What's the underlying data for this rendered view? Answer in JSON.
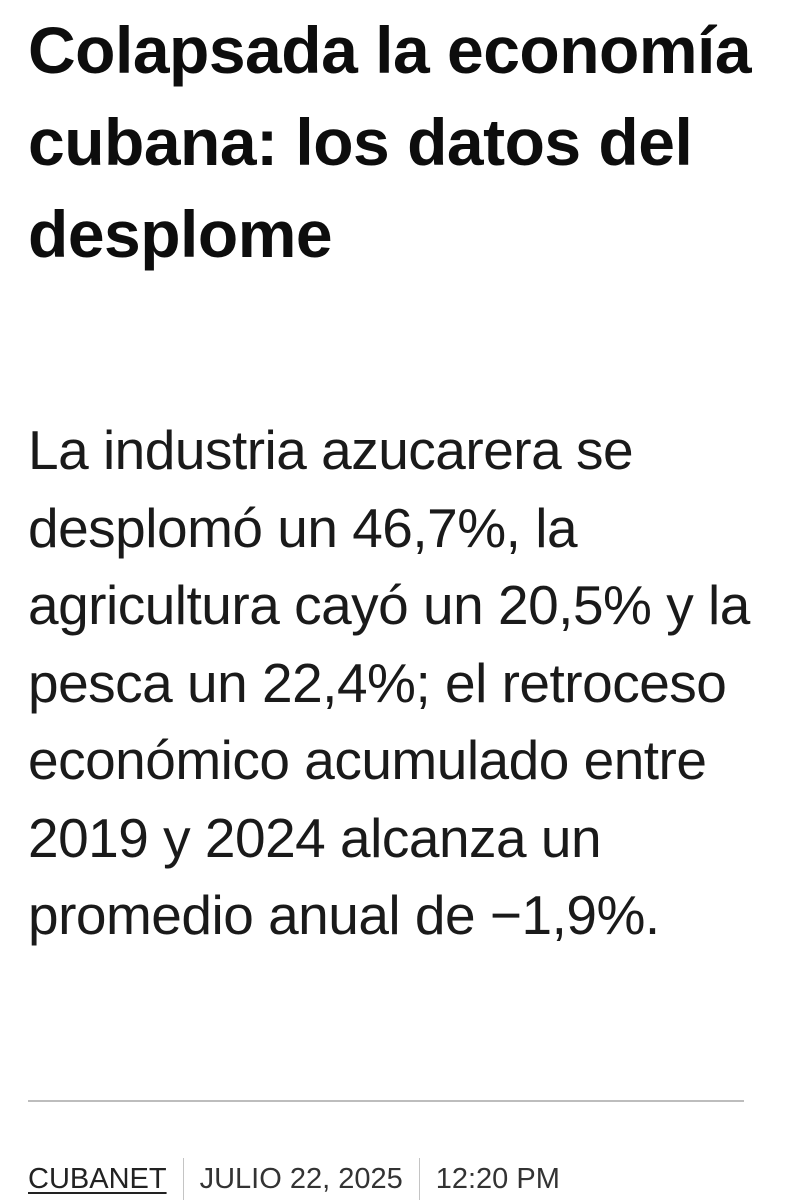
{
  "article": {
    "headline": "Colapsada la economía cubana: los datos del desplome",
    "summary": "La industria azucarera se desplomó un 46,7%, la agricultura cayó un 20,5% y la pesca un 22,4%; el retroceso económico acumulado entre 2019 y 2024 alcanza un promedio anual de −1,9%."
  },
  "meta": {
    "source": "CUBANET",
    "date": "JULIO 22, 2025",
    "time": "12:20 PM"
  }
}
